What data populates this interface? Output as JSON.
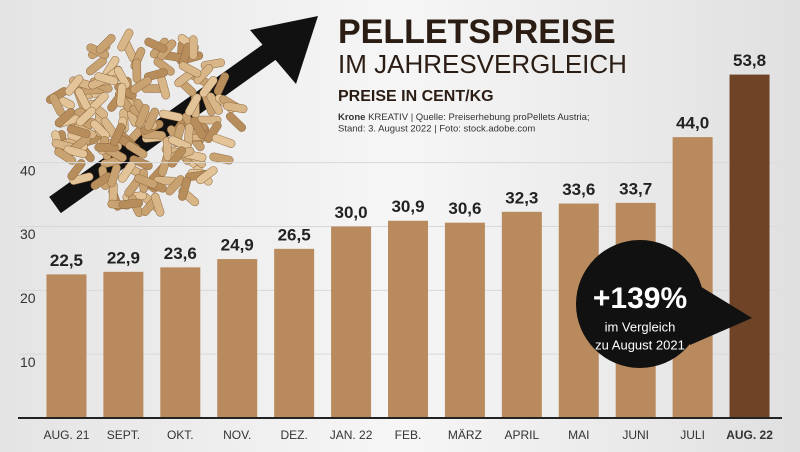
{
  "chart_data": {
    "type": "bar",
    "title": "PELLETSPREISE",
    "subtitle": "IM JAHRESVERGLEICH",
    "unit_label": "PREISE IN CENT/KG",
    "source_brand": "Krone",
    "source_brand_suffix": "KREATIV",
    "source_line1": "| Quelle: Preiserhebung proPellets Austria;",
    "source_line2": "Stand: 3. August 2022 | Foto: stock.adobe.com",
    "annotation": {
      "headline": "+139%",
      "line1": "im Vergleich",
      "line2": "zu August 2021"
    },
    "categories": [
      "AUG. 21",
      "SEPT.",
      "OKT.",
      "NOV.",
      "DEZ.",
      "JAN. 22",
      "FEB.",
      "MÄRZ",
      "APRIL",
      "MAI",
      "JUNI",
      "JULI",
      "AUG. 22"
    ],
    "values": [
      22.5,
      22.9,
      23.6,
      24.9,
      26.5,
      30.0,
      30.9,
      30.6,
      32.3,
      33.6,
      33.7,
      44.0,
      53.8
    ],
    "value_labels": [
      "22,5",
      "22,9",
      "23,6",
      "24,9",
      "26,5",
      "30,0",
      "30,9",
      "30,6",
      "32,3",
      "33,6",
      "33,7",
      "44,0",
      "53,8"
    ],
    "colors": [
      "#b98a5d",
      "#b98a5d",
      "#b98a5d",
      "#b98a5d",
      "#b98a5d",
      "#b98a5d",
      "#b98a5d",
      "#b98a5d",
      "#b98a5d",
      "#b98a5d",
      "#b98a5d",
      "#b98a5d",
      "#6e4326"
    ],
    "ylim": [
      0,
      60
    ],
    "yticks": [
      10,
      20,
      30,
      40
    ],
    "grid": true
  }
}
